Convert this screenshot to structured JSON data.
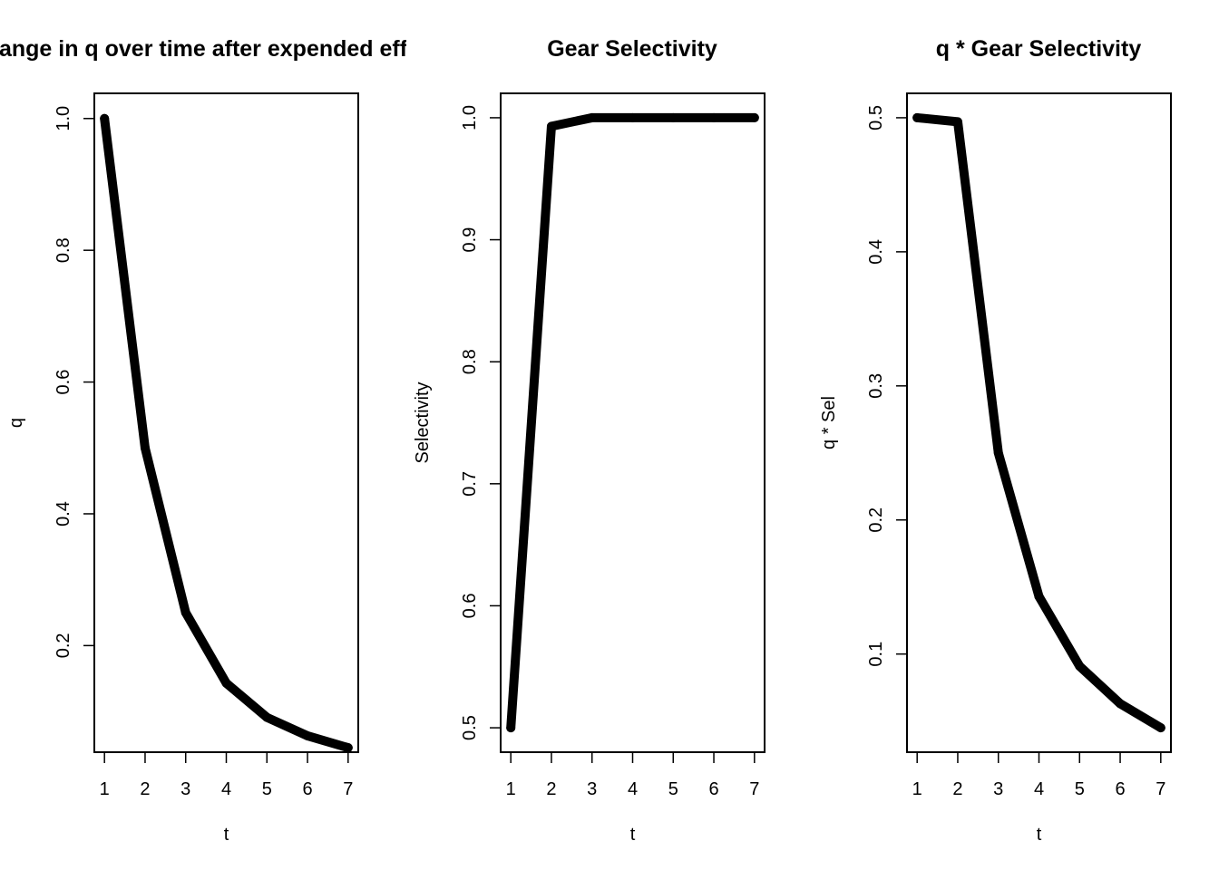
{
  "chart_data": [
    {
      "type": "line",
      "title": "Change in q over time after expended effort",
      "xlabel": "t",
      "ylabel": "q",
      "x": [
        1,
        2,
        3,
        4,
        5,
        6,
        7
      ],
      "series": [
        {
          "values": [
            1.0,
            0.5,
            0.25,
            0.143,
            0.091,
            0.063,
            0.045
          ]
        }
      ],
      "xticks": [
        "1",
        "2",
        "3",
        "4",
        "5",
        "6",
        "7"
      ],
      "yticks": [
        0.2,
        0.4,
        0.6,
        0.8,
        1.0
      ],
      "ytick_labels": [
        "0.2",
        "0.4",
        "0.6",
        "0.8",
        "1.0"
      ],
      "xlim": [
        0.75,
        7.25
      ],
      "ylim": [
        0.0382,
        1.0382
      ],
      "grid": false,
      "color": "#000000"
    },
    {
      "type": "line",
      "title": "Gear Selectivity",
      "xlabel": "t",
      "ylabel": "Selectivity",
      "x": [
        1,
        2,
        3,
        4,
        5,
        6,
        7
      ],
      "series": [
        {
          "values": [
            0.5,
            0.993,
            1.0,
            1.0,
            1.0,
            1.0,
            1.0
          ]
        }
      ],
      "xticks": [
        "1",
        "2",
        "3",
        "4",
        "5",
        "6",
        "7"
      ],
      "yticks": [
        0.5,
        0.6,
        0.7,
        0.8,
        0.9,
        1.0
      ],
      "ytick_labels": [
        "0.5",
        "0.6",
        "0.7",
        "0.8",
        "0.9",
        "1.0"
      ],
      "xlim": [
        0.75,
        7.25
      ],
      "ylim": [
        0.48,
        1.02
      ],
      "grid": false,
      "color": "#000000"
    },
    {
      "type": "line",
      "title": "q * Gear Selectivity",
      "xlabel": "t",
      "ylabel": "q * Sel",
      "x": [
        1,
        2,
        3,
        4,
        5,
        6,
        7
      ],
      "series": [
        {
          "values": [
            0.5,
            0.497,
            0.25,
            0.143,
            0.091,
            0.063,
            0.045
          ]
        }
      ],
      "xticks": [
        "1",
        "2",
        "3",
        "4",
        "5",
        "6",
        "7"
      ],
      "yticks": [
        0.1,
        0.2,
        0.3,
        0.4,
        0.5
      ],
      "ytick_labels": [
        "0.1",
        "0.2",
        "0.3",
        "0.4",
        "0.5"
      ],
      "xlim": [
        0.75,
        7.25
      ],
      "ylim": [
        0.0268,
        0.5182
      ],
      "grid": false,
      "color": "#000000"
    }
  ]
}
